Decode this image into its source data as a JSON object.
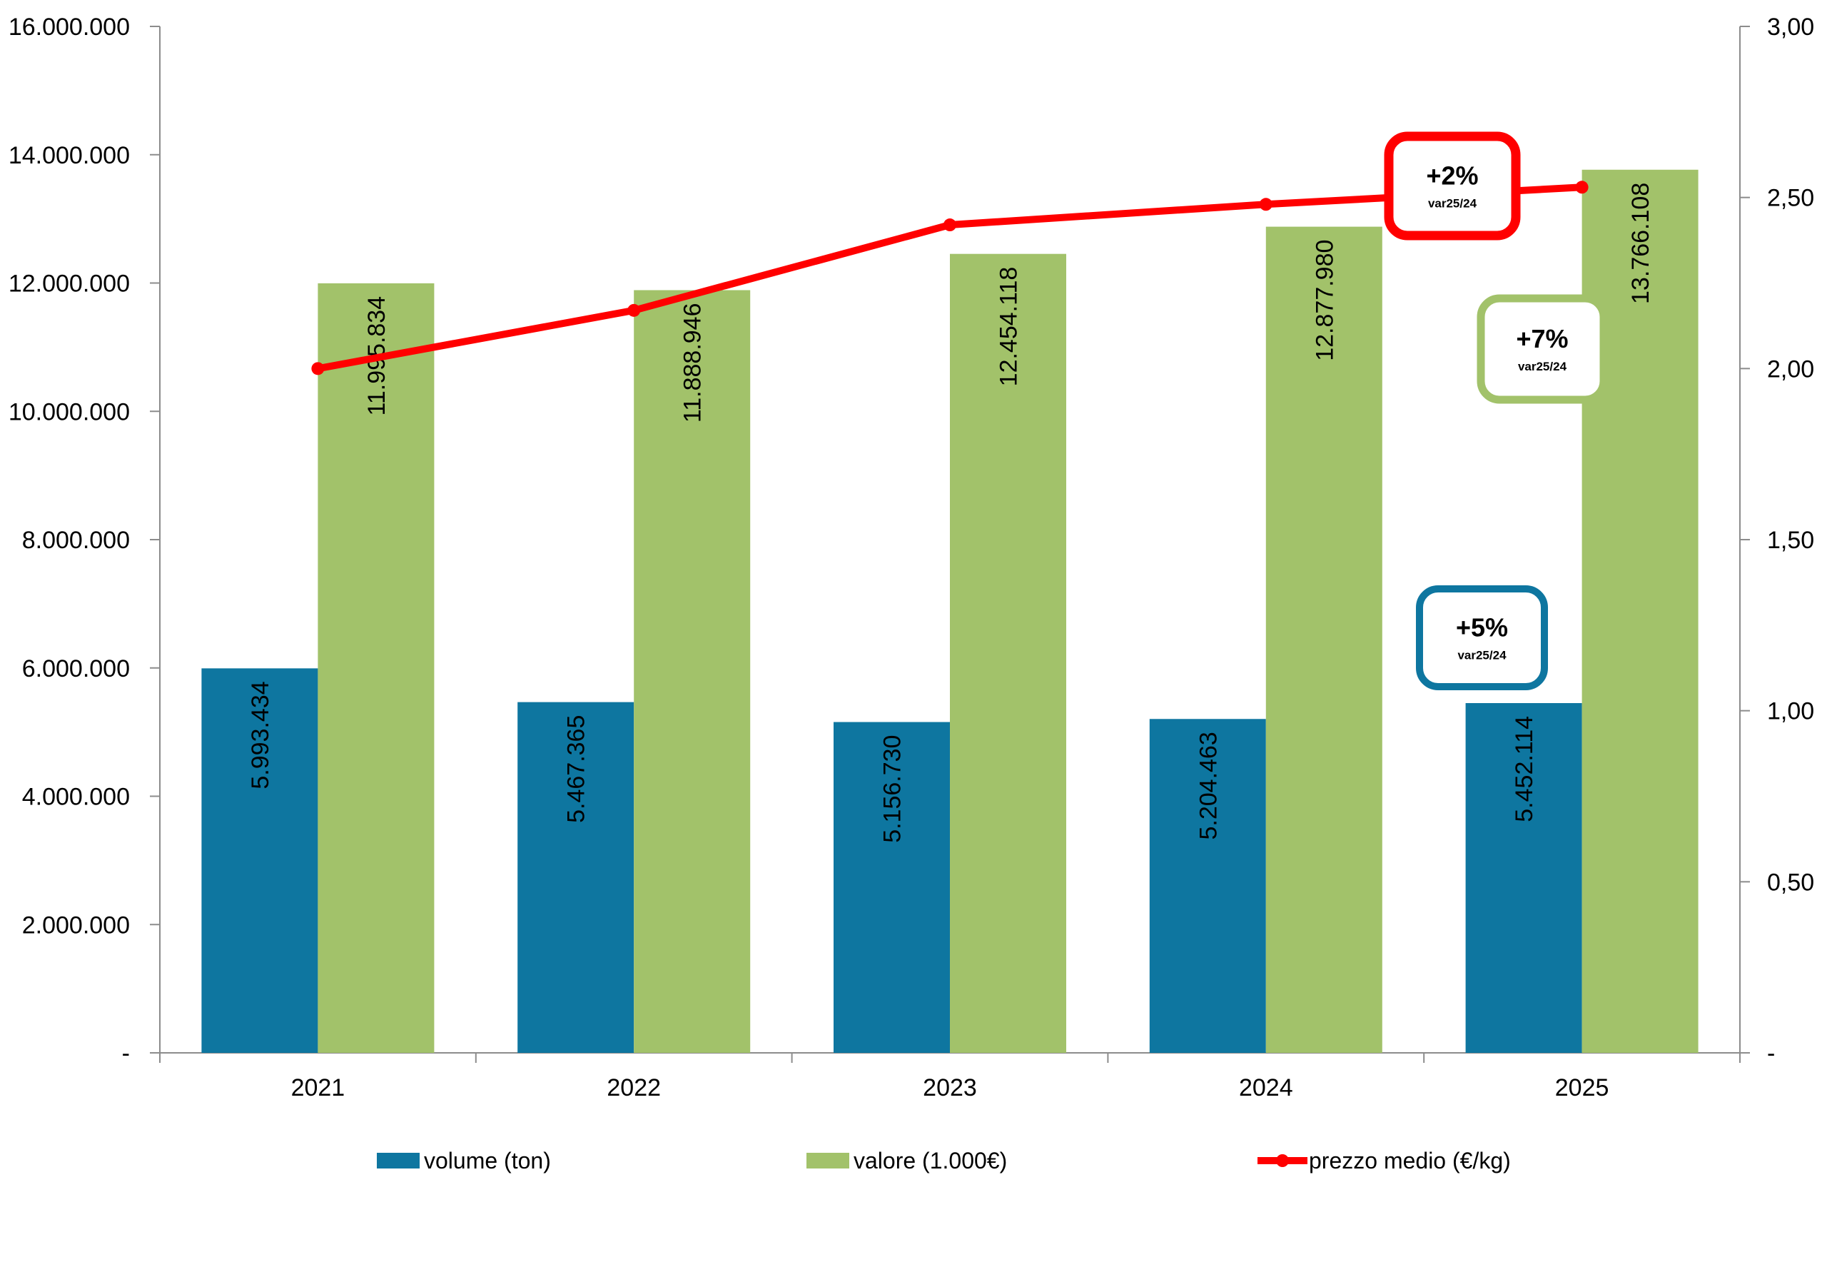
{
  "chart_data": {
    "type": "bar",
    "categories": [
      "2021",
      "2022",
      "2023",
      "2024",
      "2025"
    ],
    "series": [
      {
        "name": "volume (ton)",
        "axis": "left",
        "color": "#0e76a0",
        "values": [
          5993434,
          5467365,
          5156730,
          5204463,
          5452114
        ],
        "labels": [
          "5.993.434",
          "5.467.365",
          "5.156.730",
          "5.204.463",
          "5.452.114"
        ]
      },
      {
        "name": "valore (1.000€)",
        "axis": "left",
        "color": "#a2c26a",
        "values": [
          11995834,
          11888946,
          12454118,
          12877980,
          13766108
        ],
        "labels": [
          "11.995.834",
          "11.888.946",
          "12.454.118",
          "12.877.980",
          "13.766.108"
        ]
      },
      {
        "name": "prezzo medio (€/kg)",
        "type": "line",
        "axis": "right",
        "color": "#ff0000",
        "values": [
          2.0,
          2.17,
          2.42,
          2.48,
          2.53
        ]
      }
    ],
    "y_left": {
      "ylim": [
        0,
        16000000
      ],
      "ticks": [
        0,
        2000000,
        4000000,
        6000000,
        8000000,
        10000000,
        12000000,
        14000000,
        16000000
      ],
      "tick_labels": [
        "-",
        "2.000.000",
        "4.000.000",
        "6.000.000",
        "8.000.000",
        "10.000.000",
        "12.000.000",
        "14.000.000",
        "16.000.000"
      ]
    },
    "y_right": {
      "ylim": [
        0,
        3
      ],
      "ticks": [
        0,
        0.5,
        1,
        1.5,
        2,
        2.5,
        3
      ],
      "tick_labels": [
        "-",
        "0,50",
        "1,00",
        "1,50",
        "2,00",
        "2,50",
        "3,00"
      ]
    },
    "title": "",
    "xlabel": "",
    "legend_position": "bottom",
    "grid": false,
    "annotations": [
      {
        "series": "prezzo medio (€/kg)",
        "main": "+2%",
        "sub": "var25/24",
        "border_color": "#ff0000"
      },
      {
        "series": "valore (1.000€)",
        "main": "+7%",
        "sub": "var25/24",
        "border_color": "#a2c26a"
      },
      {
        "series": "volume (ton)",
        "main": "+5%",
        "sub": "var25/24",
        "border_color": "#0e76a0"
      }
    ]
  }
}
